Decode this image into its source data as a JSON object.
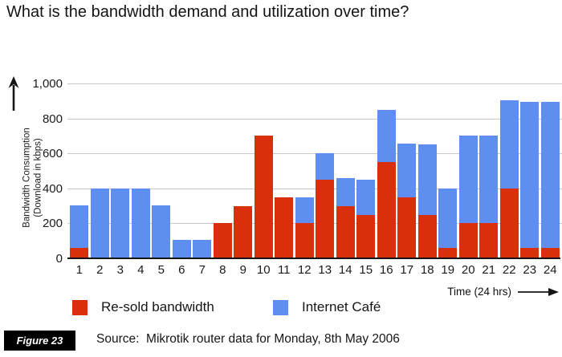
{
  "page_title": "What is the bandwidth demand and utilization over time?",
  "colors": {
    "resold_red": "#da2f0b",
    "cafe_blue": "#5e8eef",
    "gridline": "#c9c9c9",
    "axis": "#161616"
  },
  "chart_data": {
    "type": "bar",
    "stacked": true,
    "x_label": "Time (24 hrs)",
    "y_axis_title_line1": "Bandwidth Consumption",
    "y_axis_title_line2": "(Download in kbps)",
    "x": [
      1,
      2,
      3,
      4,
      5,
      6,
      7,
      8,
      9,
      10,
      11,
      12,
      13,
      14,
      15,
      16,
      17,
      18,
      19,
      20,
      21,
      22,
      23,
      24
    ],
    "series": [
      {
        "name": "Re-sold bandwidth",
        "color": "#da2f0b",
        "values": [
          60,
          0,
          0,
          0,
          0,
          0,
          0,
          200,
          300,
          700,
          350,
          200,
          450,
          300,
          250,
          550,
          350,
          250,
          60,
          200,
          200,
          400,
          60,
          60
        ]
      },
      {
        "name": "Internet Café",
        "color": "#5e8eef",
        "values": [
          245,
          400,
          400,
          400,
          305,
          105,
          105,
          0,
          0,
          0,
          0,
          150,
          150,
          160,
          200,
          300,
          305,
          400,
          340,
          500,
          500,
          505,
          835,
          835
        ]
      }
    ],
    "ytick_labels": [
      "1,000",
      "800",
      "600",
      "400",
      "200",
      "0"
    ],
    "ytick_values": [
      1000,
      800,
      600,
      400,
      200,
      0
    ],
    "ylim": [
      0,
      1000
    ],
    "grid": true,
    "legend_position": "bottom"
  },
  "legend": {
    "items": [
      {
        "label": "Re-sold bandwidth",
        "color": "#da2f0b"
      },
      {
        "label": "Internet Café",
        "color": "#5e8eef"
      }
    ]
  },
  "footer": {
    "figure_label": "Figure 23",
    "source_text": "Source:  Mikrotik router data for Monday, 8th May 2006"
  }
}
